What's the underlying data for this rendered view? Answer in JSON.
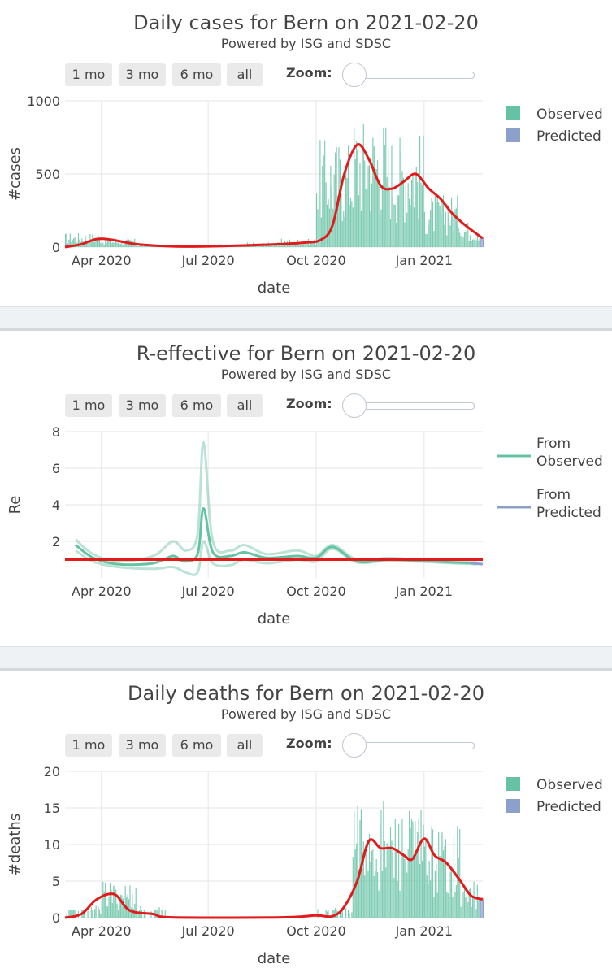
{
  "buttons": [
    "1 mo",
    "3 mo",
    "6 mo",
    "all"
  ],
  "zoom_label": "Zoom:",
  "colors": {
    "observed": "#66c2a5",
    "predicted": "#8da0cb",
    "trend": "#e31a1c",
    "grid": "#e6e6e6"
  },
  "chart_data": [
    {
      "type": "bar",
      "title": "Daily cases for Bern on 2021-02-20",
      "subtitle": "Powered by ISG and SDSC",
      "xlabel": "date",
      "ylabel": "#cases",
      "x_ticks": [
        "Apr 2020",
        "Jul 2020",
        "Oct 2020",
        "Jan 2021"
      ],
      "y_ticks": [
        "0",
        "500",
        "1000"
      ],
      "ylim": [
        0,
        1000
      ],
      "xlim": [
        "2020-03-01",
        "2021-02-20"
      ],
      "grid": true,
      "legend": [
        "Observed",
        "Predicted"
      ],
      "legend_position": "top-right",
      "observed_monthly_typical": [
        {
          "month": "2020-03",
          "value": 60
        },
        {
          "month": "2020-04",
          "value": 35
        },
        {
          "month": "2020-05",
          "value": 10
        },
        {
          "month": "2020-06",
          "value": 5
        },
        {
          "month": "2020-07",
          "value": 12
        },
        {
          "month": "2020-08",
          "value": 20
        },
        {
          "month": "2020-09",
          "value": 35
        },
        {
          "month": "2020-10",
          "value": 450
        },
        {
          "month": "2020-11",
          "value": 550
        },
        {
          "month": "2020-12",
          "value": 480
        },
        {
          "month": "2021-01",
          "value": 220
        },
        {
          "month": "2021-02",
          "value": 110
        }
      ],
      "predicted_value": 60,
      "trend": [
        [
          "2020-03-01",
          0
        ],
        [
          "2020-03-15",
          20
        ],
        [
          "2020-03-28",
          55
        ],
        [
          "2020-04-10",
          50
        ],
        [
          "2020-05-01",
          20
        ],
        [
          "2020-06-01",
          5
        ],
        [
          "2020-07-01",
          5
        ],
        [
          "2020-08-15",
          15
        ],
        [
          "2020-09-20",
          30
        ],
        [
          "2020-10-05",
          50
        ],
        [
          "2020-10-15",
          150
        ],
        [
          "2020-10-25",
          500
        ],
        [
          "2020-11-05",
          700
        ],
        [
          "2020-11-15",
          600
        ],
        [
          "2020-11-25",
          420
        ],
        [
          "2020-12-05",
          400
        ],
        [
          "2020-12-15",
          450
        ],
        [
          "2020-12-25",
          500
        ],
        [
          "2021-01-05",
          400
        ],
        [
          "2021-01-15",
          330
        ],
        [
          "2021-01-25",
          230
        ],
        [
          "2021-02-05",
          150
        ],
        [
          "2021-02-20",
          60
        ]
      ]
    },
    {
      "type": "line",
      "title": "R-effective for Bern on 2021-02-20",
      "subtitle": "Powered by ISG and SDSC",
      "xlabel": "date",
      "ylabel": "Re",
      "x_ticks": [
        "Apr 2020",
        "Jul 2020",
        "Oct 2020",
        "Jan 2021"
      ],
      "y_ticks": [
        "2",
        "4",
        "6",
        "8"
      ],
      "ylim": [
        0,
        8
      ],
      "xlim": [
        "2020-03-01",
        "2021-02-20"
      ],
      "grid": true,
      "legend": [
        "From Observed",
        "From Predicted"
      ],
      "legend_position": "top-right",
      "reference_line": 1,
      "median": [
        [
          "2020-03-10",
          1.8
        ],
        [
          "2020-03-25",
          1.1
        ],
        [
          "2020-04-15",
          0.75
        ],
        [
          "2020-05-15",
          0.8
        ],
        [
          "2020-06-01",
          1.2
        ],
        [
          "2020-06-10",
          0.9
        ],
        [
          "2020-06-22",
          1.3
        ],
        [
          "2020-06-27",
          3.8
        ],
        [
          "2020-07-05",
          1.4
        ],
        [
          "2020-07-20",
          1.2
        ],
        [
          "2020-08-01",
          1.4
        ],
        [
          "2020-08-20",
          1.1
        ],
        [
          "2020-09-15",
          1.2
        ],
        [
          "2020-10-01",
          1.1
        ],
        [
          "2020-10-15",
          1.7
        ],
        [
          "2020-11-05",
          0.9
        ],
        [
          "2020-12-01",
          1.0
        ],
        [
          "2020-12-25",
          0.95
        ],
        [
          "2021-01-25",
          0.85
        ],
        [
          "2021-02-15",
          0.8
        ]
      ],
      "upper": [
        [
          "2020-03-10",
          2.1
        ],
        [
          "2020-03-25",
          1.3
        ],
        [
          "2020-04-15",
          0.9
        ],
        [
          "2020-05-15",
          1.2
        ],
        [
          "2020-06-01",
          2.0
        ],
        [
          "2020-06-12",
          1.5
        ],
        [
          "2020-06-22",
          2.4
        ],
        [
          "2020-06-27",
          7.4
        ],
        [
          "2020-07-05",
          2.0
        ],
        [
          "2020-07-20",
          1.5
        ],
        [
          "2020-08-01",
          1.8
        ],
        [
          "2020-08-20",
          1.3
        ],
        [
          "2020-09-15",
          1.5
        ],
        [
          "2020-10-01",
          1.2
        ],
        [
          "2020-10-15",
          1.8
        ],
        [
          "2020-11-05",
          1.0
        ],
        [
          "2020-12-01",
          1.1
        ],
        [
          "2020-12-25",
          1.0
        ],
        [
          "2021-01-25",
          0.9
        ],
        [
          "2021-02-15",
          0.85
        ]
      ],
      "lower": [
        [
          "2020-03-10",
          1.5
        ],
        [
          "2020-03-25",
          0.9
        ],
        [
          "2020-04-15",
          0.6
        ],
        [
          "2020-05-15",
          0.5
        ],
        [
          "2020-06-01",
          0.6
        ],
        [
          "2020-06-12",
          0.3
        ],
        [
          "2020-06-22",
          0.3
        ],
        [
          "2020-06-27",
          2.0
        ],
        [
          "2020-07-05",
          0.8
        ],
        [
          "2020-07-20",
          0.7
        ],
        [
          "2020-08-01",
          1.0
        ],
        [
          "2020-08-20",
          0.8
        ],
        [
          "2020-09-15",
          1.0
        ],
        [
          "2020-10-01",
          0.9
        ],
        [
          "2020-10-15",
          1.6
        ],
        [
          "2020-11-05",
          0.85
        ],
        [
          "2020-12-01",
          0.95
        ],
        [
          "2020-12-25",
          0.9
        ],
        [
          "2021-01-25",
          0.8
        ],
        [
          "2021-02-15",
          0.75
        ]
      ],
      "predicted_segment": [
        [
          "2021-02-10",
          0.8
        ],
        [
          "2021-02-20",
          0.75
        ]
      ]
    },
    {
      "type": "bar",
      "title": "Daily deaths for Bern on 2021-02-20",
      "subtitle": "Powered by ISG and SDSC",
      "xlabel": "date",
      "ylabel": "#deaths",
      "x_ticks": [
        "Apr 2020",
        "Jul 2020",
        "Oct 2020",
        "Jan 2021"
      ],
      "y_ticks": [
        "0",
        "5",
        "10",
        "15",
        "20"
      ],
      "ylim": [
        0,
        20
      ],
      "xlim": [
        "2020-03-01",
        "2021-02-20"
      ],
      "grid": true,
      "legend": [
        "Observed",
        "Predicted"
      ],
      "legend_position": "top-right",
      "observed_monthly_typical": [
        {
          "month": "2020-03",
          "value": 1
        },
        {
          "month": "2020-04",
          "value": 3
        },
        {
          "month": "2020-05",
          "value": 1
        },
        {
          "month": "2020-06",
          "value": 0
        },
        {
          "month": "2020-07",
          "value": 0
        },
        {
          "month": "2020-08",
          "value": 0
        },
        {
          "month": "2020-09",
          "value": 0
        },
        {
          "month": "2020-10",
          "value": 1
        },
        {
          "month": "2020-11",
          "value": 10
        },
        {
          "month": "2020-12",
          "value": 9
        },
        {
          "month": "2021-01",
          "value": 8
        },
        {
          "month": "2021-02",
          "value": 3
        }
      ],
      "predicted_value": 2.5,
      "trend": [
        [
          "2020-03-01",
          0
        ],
        [
          "2020-03-15",
          0.5
        ],
        [
          "2020-03-28",
          2.5
        ],
        [
          "2020-04-12",
          3.2
        ],
        [
          "2020-04-25",
          1.0
        ],
        [
          "2020-05-15",
          0.5
        ],
        [
          "2020-06-01",
          0.05
        ],
        [
          "2020-09-01",
          0.05
        ],
        [
          "2020-10-01",
          0.3
        ],
        [
          "2020-10-15",
          0.2
        ],
        [
          "2020-10-25",
          1.5
        ],
        [
          "2020-11-05",
          5
        ],
        [
          "2020-11-15",
          10.5
        ],
        [
          "2020-11-25",
          9.5
        ],
        [
          "2020-12-05",
          9.5
        ],
        [
          "2020-12-15",
          8.5
        ],
        [
          "2020-12-22",
          8
        ],
        [
          "2021-01-01",
          10.8
        ],
        [
          "2021-01-10",
          8.5
        ],
        [
          "2021-01-20",
          7.5
        ],
        [
          "2021-02-01",
          5
        ],
        [
          "2021-02-10",
          3
        ],
        [
          "2021-02-20",
          2.5
        ]
      ]
    }
  ]
}
